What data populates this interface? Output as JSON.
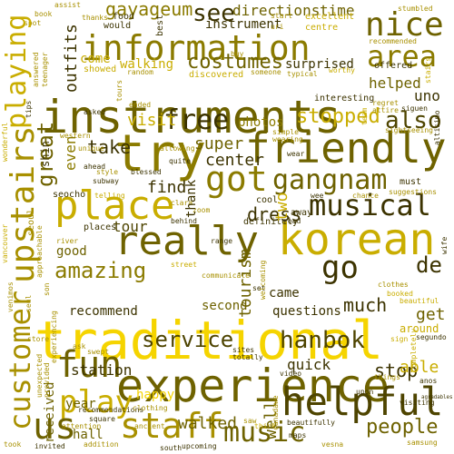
{
  "palette": [
    "#f5d400",
    "#e2c200",
    "#c9ad00",
    "#a89000",
    "#8b7b00",
    "#6e6200",
    "#4e4400",
    "#3c3300"
  ],
  "words": {
    "traditional": "traditional",
    "instruments": "instruments",
    "experience": "experience",
    "information": "information",
    "helpful": "helpful",
    "friendly": "friendly",
    "korean": "korean",
    "try": "try",
    "really": "really",
    "place": "place",
    "staff": "staff",
    "fun": "fun",
    "play": "play",
    "upstairs": "upstairs",
    "customer": "customer",
    "playing": "playing",
    "musical": "musical",
    "gangnam": "gangnam",
    "got": "got",
    "nice": "nice",
    "area": "area",
    "go": "go",
    "music": "music",
    "us": "us",
    "people": "people",
    "service": "service",
    "free": "free",
    "also": "also",
    "amazing": "amazing",
    "hanbok": "hanbok",
    "costumes": "costumes",
    "see": "see",
    "directions": "directions",
    "time": "time",
    "gayageum": "gayageum",
    "take": "take",
    "visit": "visit",
    "stopped": "stopped",
    "dress": "dress",
    "tour": "tour",
    "find": "find",
    "super": "super",
    "center": "center",
    "great": "great",
    "station": "station",
    "stop": "stop",
    "able": "able",
    "walked": "walked",
    "came": "came",
    "much": "much",
    "tourism": "tourism",
    "questions": "questions",
    "quick": "quick",
    "helped": "helped",
    "uno": "uno",
    "de": "de",
    "get": "get",
    "around": "around",
    "good": "good",
    "recommend": "recommend",
    "happy": "happy",
    "hall": "hall",
    "year": "year",
    "well": "well",
    "received": "received",
    "two": "two",
    "second": "second",
    "walking": "walking",
    "come": "come",
    "outfits": "outfits",
    "surprised": "surprised",
    "instrument": "instrument",
    "photos": "photos",
    "thank": "thank",
    "even": "even",
    "shin": "shin",
    "seocho": "seocho",
    "places": "places",
    "definitely": "definitely",
    "away": "away",
    "cool": "cool",
    "interesting": "interesting",
    "offered": "offered",
    "would": "would",
    "food": "food",
    "thanks": "thanks",
    "book": "book",
    "assist": "assist",
    "spot": "spot",
    "best": "best",
    "start": "start",
    "stumbled": "stumbled",
    "excellent": "excellent",
    "centre": "centre",
    "recommended": "recommended",
    "uri": "uri",
    "worthy": "worthy",
    "tips": "tips",
    "showed": "showed",
    "random": "random",
    "discovered": "discovered",
    "typical": "typical",
    "someone": "someone",
    "stairs": "stairs",
    "regret": "regret",
    "attire": "attire",
    "siguen": "siguen",
    "sightseeing": "sightseeing",
    "altisimo": "altisimo",
    "must": "must",
    "suggestions": "suggestions",
    "chance": "chance",
    "wee": "wee",
    "wife": "wife",
    "simple": "simple",
    "wearing": "wearing",
    "team": "team",
    "ahead": "ahead",
    "unique": "unique",
    "style": "style",
    "blessed": "blessed",
    "quite": "quite",
    "allowing": "allowing",
    "telling": "telling",
    "subway": "subway",
    "ended": "ended",
    "western": "western",
    "seoul": "seoul",
    "approachable": "approachable",
    "river": "river",
    "range": "range",
    "behind": "behind",
    "clara": "clara",
    "road": "road",
    "welcoming": "welcoming",
    "wonderful": "wonderful",
    "vancouver": "vancouver",
    "son": "son",
    "venimos": "venimos",
    "street": "street",
    "set": "set",
    "communicate": "communicate",
    "clothes": "clothes",
    "booked": "booked",
    "beautiful": "beautiful",
    "segundo": "segundo",
    "sign": "sign",
    "ask": "ask",
    "swept": "swept",
    "sites": "sites",
    "totally": "totally",
    "video": "video",
    "store": "store",
    "unexpected": "unexpected",
    "provided": "provided",
    "experiencing": "experiencing",
    "completely": "completely",
    "agradables": "agradables",
    "things": "things",
    "anos": "anos",
    "upon": "upon",
    "recommendations": "recommendations",
    "square": "square",
    "clothing": "clothing",
    "ancient": "ancient",
    "attention": "attention",
    "addition": "addition",
    "invited": "invited",
    "upcoming": "upcoming",
    "south": "south",
    "vesna": "vesna",
    "visiting": "visiting",
    "maps": "maps",
    "think": "think",
    "beautifully": "beautifully",
    "saw": "saw",
    "took": "took",
    "canadawe": "canadawe",
    "answered": "answered",
    "teenager": "teenager",
    "tours": "tours",
    "samsung": "samsung",
    "wear": "wear",
    "seul": "seul",
    "zoom": "zoom",
    "asked": "asked",
    "buy": "buy"
  }
}
